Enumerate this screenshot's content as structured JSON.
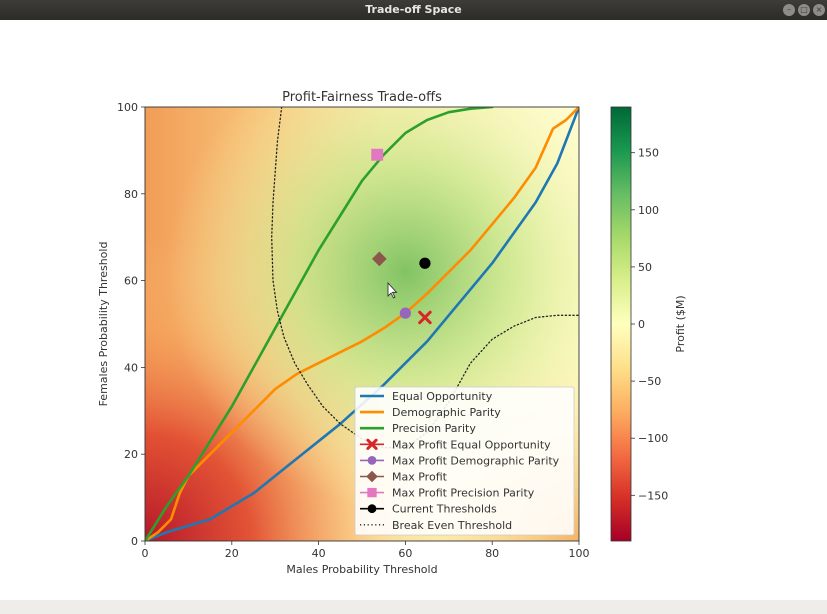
{
  "window": {
    "title": "Trade-off Space",
    "controls": [
      "minimize-icon",
      "maximize-icon",
      "close-icon"
    ]
  },
  "chart_data": {
    "type": "line",
    "title": "Profit-Fairness Trade-offs",
    "xlabel": "Males Probability Threshold",
    "ylabel": "Females Probability Threshold",
    "xlim": [
      0,
      100
    ],
    "ylim": [
      0,
      100
    ],
    "xticks": [
      0,
      20,
      40,
      60,
      80,
      100
    ],
    "yticks": [
      0,
      20,
      40,
      60,
      80,
      100
    ],
    "background": "heatmap of profit over the threshold grid, peak near (60, 62)",
    "colorbar": {
      "label": "Profit ($M)",
      "range": [
        -190,
        190
      ],
      "ticks": [
        -150,
        -100,
        -50,
        0,
        50,
        100,
        150
      ],
      "tick_labels": [
        "−150",
        "−100",
        "−50",
        "0",
        "50",
        "100",
        "150"
      ],
      "colormap": "RdYlGn"
    },
    "legend_position": "lower-right",
    "series": [
      {
        "name": "Equal Opportunity",
        "color": "#1f77b4",
        "style": "solid",
        "x": [
          0,
          5,
          10,
          15,
          20,
          25,
          30,
          35,
          40,
          45,
          50,
          55,
          60,
          65,
          70,
          75,
          80,
          85,
          90,
          95,
          100
        ],
        "y": [
          0,
          2,
          3.5,
          5,
          8,
          11,
          15,
          19,
          23,
          27,
          31.5,
          36,
          41,
          46,
          52,
          58,
          64,
          71,
          78,
          87,
          100
        ]
      },
      {
        "name": "Demographic Parity",
        "color": "#ff8c00",
        "style": "solid",
        "x": [
          0,
          3,
          6,
          8,
          10,
          15,
          20,
          25,
          30,
          35,
          40,
          45,
          50,
          55,
          60,
          65,
          70,
          75,
          80,
          85,
          90,
          94,
          97,
          100
        ],
        "y": [
          0,
          2,
          5,
          11,
          15,
          20,
          25,
          30,
          35,
          38.5,
          41,
          43.5,
          46,
          49,
          52.5,
          57,
          62,
          67,
          73,
          79,
          86,
          95,
          97,
          100
        ]
      },
      {
        "name": "Precision Parity",
        "color": "#2ca02c",
        "style": "solid",
        "x": [
          0,
          5,
          10,
          15,
          20,
          25,
          30,
          35,
          40,
          45,
          50,
          55,
          60,
          65,
          70,
          75,
          80
        ],
        "y": [
          0,
          8,
          15,
          23,
          31,
          40,
          49,
          58,
          67,
          75,
          83,
          89,
          94,
          97,
          98.8,
          99.6,
          100
        ]
      },
      {
        "name": "Max Profit Equal Opportunity",
        "marker": "x",
        "color": "#d62728",
        "x": [
          64.5
        ],
        "y": [
          51.5
        ]
      },
      {
        "name": "Max Profit Demographic Parity",
        "marker": "circle",
        "color": "#9467bd",
        "x": [
          60
        ],
        "y": [
          52.5
        ]
      },
      {
        "name": "Max Profit",
        "marker": "diamond",
        "color": "#8c564b",
        "x": [
          54
        ],
        "y": [
          65
        ]
      },
      {
        "name": "Max Profit Precision Parity",
        "marker": "square",
        "color": "#e377c2",
        "x": [
          53.5
        ],
        "y": [
          89
        ]
      },
      {
        "name": "Current Thresholds",
        "marker": "circle",
        "color": "#000000",
        "x": [
          64.5
        ],
        "y": [
          64
        ]
      },
      {
        "name": "Break Even Threshold",
        "color": "#222222",
        "style": "dotted",
        "x": [
          31.5,
          30.5,
          30,
          29.5,
          29.2,
          29.5,
          30.5,
          32,
          34.5,
          37.5,
          41,
          45,
          50,
          55,
          60,
          65,
          70,
          75,
          80,
          85,
          90,
          95,
          100
        ],
        "y": [
          100,
          92,
          85,
          78,
          70,
          60,
          53,
          47,
          41,
          36,
          31,
          27,
          23.5,
          21.5,
          21.5,
          25,
          32,
          41,
          46.5,
          49.5,
          51.5,
          52,
          52
        ]
      }
    ]
  }
}
